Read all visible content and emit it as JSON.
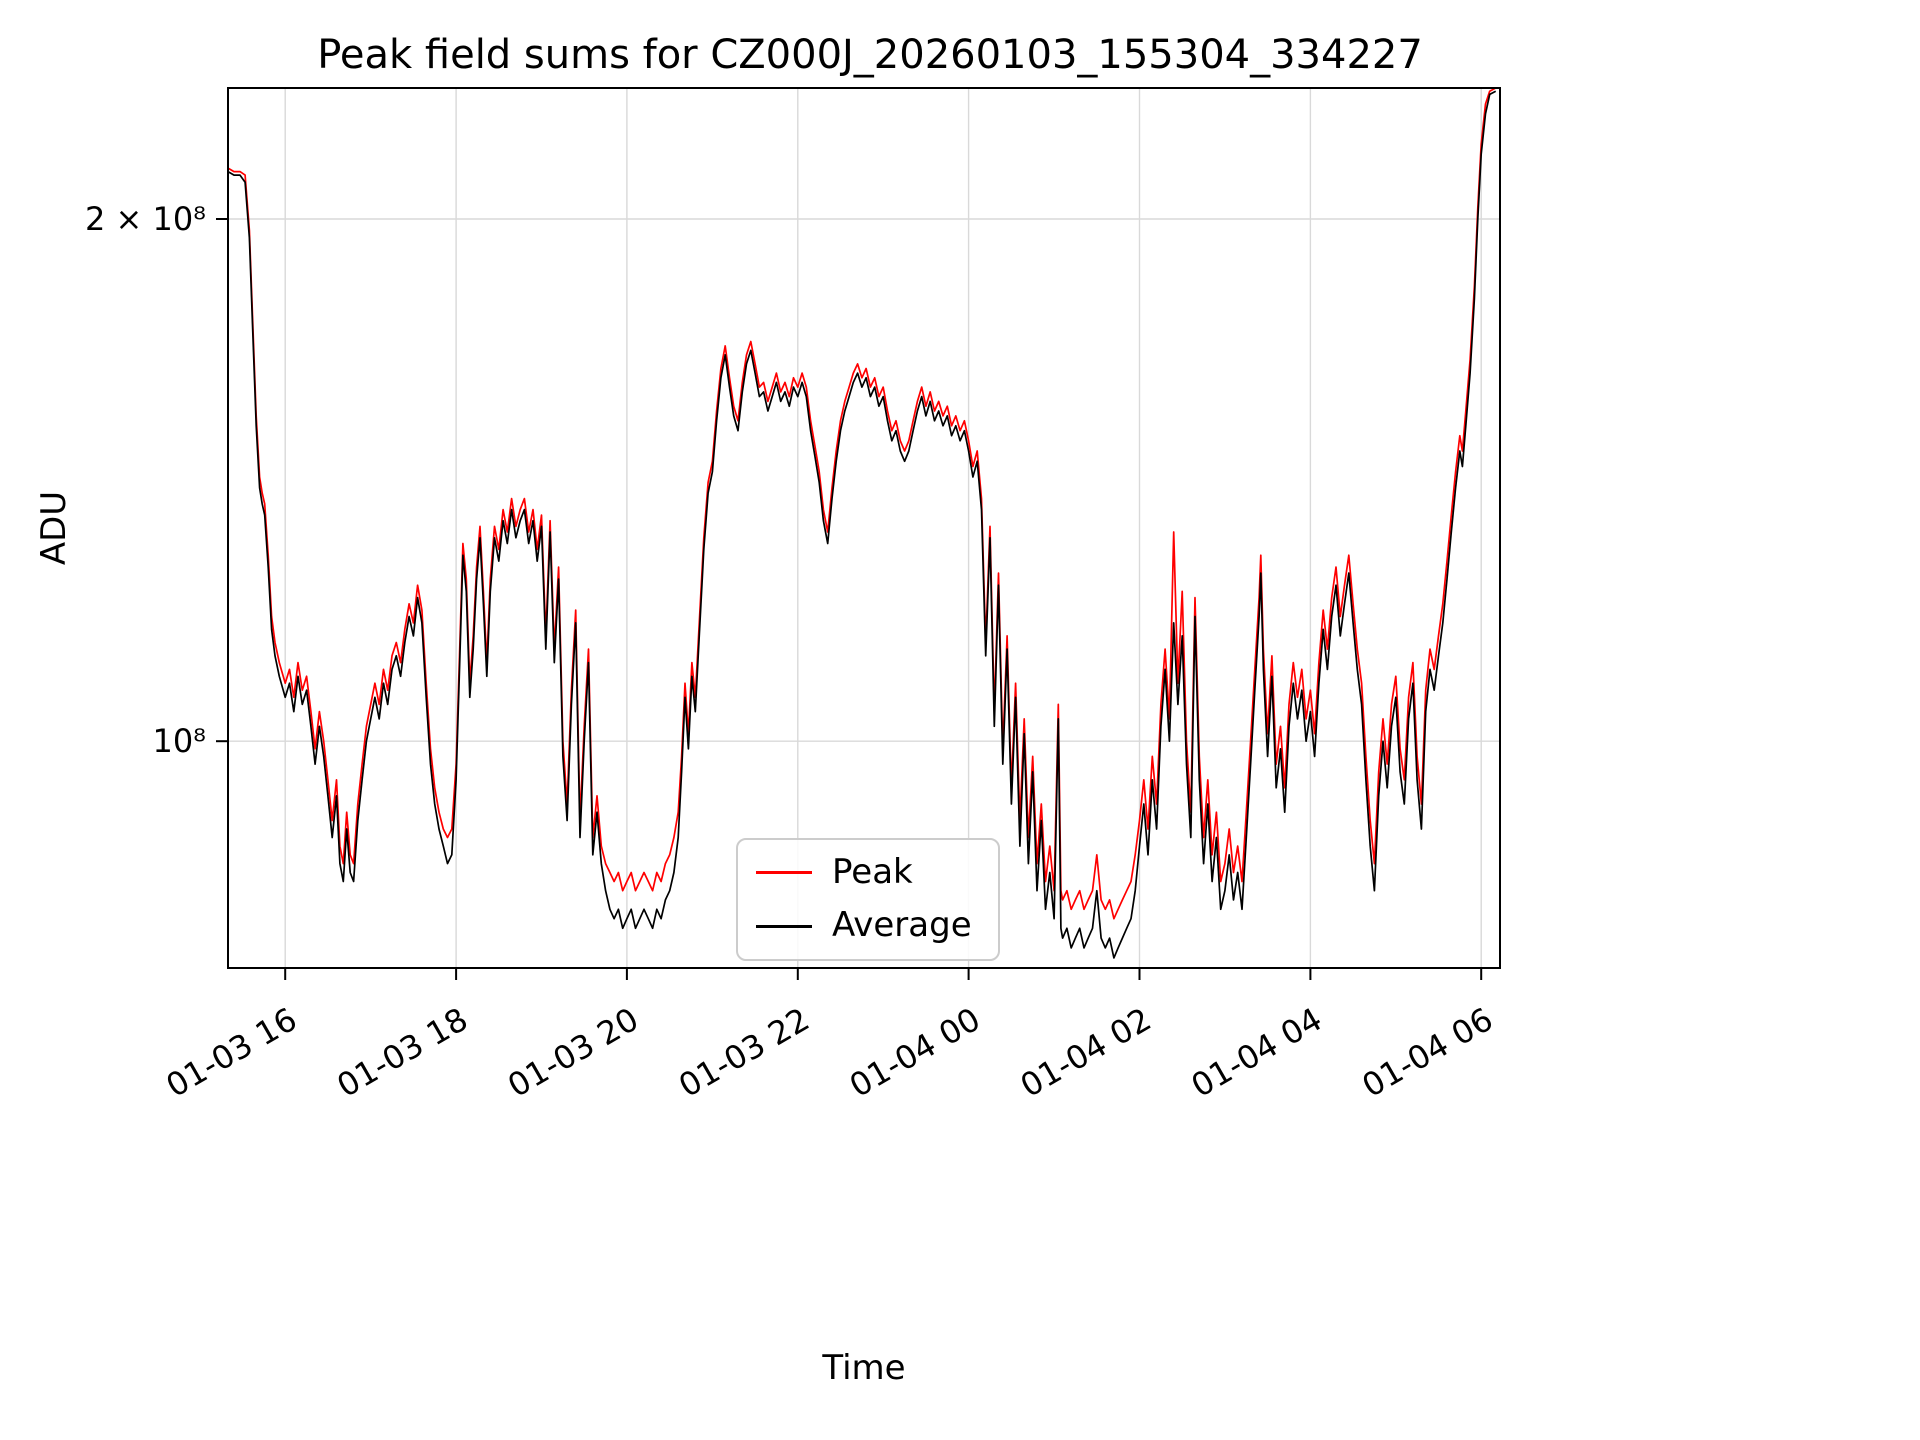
{
  "chart_data": {
    "type": "line",
    "title": "Peak field sums for CZ000J_20260103_155304_334227",
    "xlabel": "Time",
    "ylabel": "ADU",
    "y_scale": "log",
    "value_unit": "1e8 ADU",
    "xlim": [
      15.33,
      30.22
    ],
    "ylim_e8": [
      0.74,
      2.38
    ],
    "legend_position": "lower center",
    "grid": true,
    "colors": {
      "grid": "#d9d9d9",
      "peak": "#ff0000",
      "average": "#000000"
    },
    "x_ticks": [
      {
        "t": 16,
        "label": "01-03 16"
      },
      {
        "t": 18,
        "label": "01-03 18"
      },
      {
        "t": 20,
        "label": "01-03 20"
      },
      {
        "t": 22,
        "label": "01-03 22"
      },
      {
        "t": 24,
        "label": "01-04 00"
      },
      {
        "t": 26,
        "label": "01-04 02"
      },
      {
        "t": 28,
        "label": "01-04 04"
      },
      {
        "t": 30,
        "label": "01-04 06"
      }
    ],
    "y_ticks": [
      {
        "v": 1,
        "label": "10⁸"
      },
      {
        "v": 2,
        "label": "2 × 10⁸"
      }
    ],
    "series": [
      {
        "name": "Peak",
        "color": "#ff0000"
      },
      {
        "name": "Average",
        "color": "#000000"
      }
    ],
    "points_format": [
      "t_hours_from_0103_0000",
      "average_1e8",
      "peak_1e8"
    ],
    "points": [
      [
        15.33,
        2.13,
        2.14
      ],
      [
        15.4,
        2.12,
        2.13
      ],
      [
        15.47,
        2.12,
        2.13
      ],
      [
        15.53,
        2.1,
        2.12
      ],
      [
        15.58,
        1.95,
        1.97
      ],
      [
        15.62,
        1.72,
        1.74
      ],
      [
        15.66,
        1.52,
        1.54
      ],
      [
        15.7,
        1.4,
        1.42
      ],
      [
        15.73,
        1.37,
        1.39
      ],
      [
        15.76,
        1.35,
        1.37
      ],
      [
        15.8,
        1.26,
        1.28
      ],
      [
        15.84,
        1.16,
        1.18
      ],
      [
        15.88,
        1.12,
        1.14
      ],
      [
        15.93,
        1.09,
        1.11
      ],
      [
        16.0,
        1.06,
        1.08
      ],
      [
        16.05,
        1.08,
        1.1
      ],
      [
        16.1,
        1.04,
        1.06
      ],
      [
        16.15,
        1.09,
        1.11
      ],
      [
        16.2,
        1.05,
        1.07
      ],
      [
        16.25,
        1.07,
        1.09
      ],
      [
        16.3,
        1.02,
        1.04
      ],
      [
        16.35,
        0.97,
        0.99
      ],
      [
        16.4,
        1.02,
        1.04
      ],
      [
        16.45,
        0.98,
        1.0
      ],
      [
        16.5,
        0.93,
        0.95
      ],
      [
        16.55,
        0.88,
        0.9
      ],
      [
        16.6,
        0.93,
        0.95
      ],
      [
        16.64,
        0.85,
        0.87
      ],
      [
        16.68,
        0.83,
        0.85
      ],
      [
        16.72,
        0.89,
        0.91
      ],
      [
        16.76,
        0.84,
        0.86
      ],
      [
        16.8,
        0.83,
        0.85
      ],
      [
        16.85,
        0.9,
        0.92
      ],
      [
        16.9,
        0.95,
        0.97
      ],
      [
        16.95,
        1.0,
        1.02
      ],
      [
        17.0,
        1.03,
        1.05
      ],
      [
        17.05,
        1.06,
        1.08
      ],
      [
        17.1,
        1.03,
        1.05
      ],
      [
        17.15,
        1.08,
        1.1
      ],
      [
        17.2,
        1.05,
        1.07
      ],
      [
        17.25,
        1.1,
        1.12
      ],
      [
        17.3,
        1.12,
        1.14
      ],
      [
        17.35,
        1.09,
        1.11
      ],
      [
        17.4,
        1.14,
        1.16
      ],
      [
        17.45,
        1.18,
        1.2
      ],
      [
        17.5,
        1.15,
        1.17
      ],
      [
        17.55,
        1.21,
        1.23
      ],
      [
        17.6,
        1.17,
        1.19
      ],
      [
        17.65,
        1.06,
        1.08
      ],
      [
        17.7,
        0.97,
        0.99
      ],
      [
        17.75,
        0.92,
        0.94
      ],
      [
        17.8,
        0.89,
        0.91
      ],
      [
        17.85,
        0.87,
        0.89
      ],
      [
        17.9,
        0.85,
        0.88
      ],
      [
        17.95,
        0.86,
        0.89
      ],
      [
        18.0,
        0.95,
        0.97
      ],
      [
        18.04,
        1.1,
        1.12
      ],
      [
        18.08,
        1.28,
        1.3
      ],
      [
        18.12,
        1.22,
        1.24
      ],
      [
        18.16,
        1.06,
        1.08
      ],
      [
        18.2,
        1.13,
        1.15
      ],
      [
        18.24,
        1.24,
        1.26
      ],
      [
        18.28,
        1.31,
        1.33
      ],
      [
        18.32,
        1.2,
        1.22
      ],
      [
        18.36,
        1.09,
        1.11
      ],
      [
        18.4,
        1.22,
        1.24
      ],
      [
        18.45,
        1.31,
        1.33
      ],
      [
        18.5,
        1.27,
        1.29
      ],
      [
        18.55,
        1.34,
        1.36
      ],
      [
        18.6,
        1.3,
        1.32
      ],
      [
        18.65,
        1.36,
        1.38
      ],
      [
        18.7,
        1.31,
        1.33
      ],
      [
        18.75,
        1.34,
        1.36
      ],
      [
        18.8,
        1.36,
        1.38
      ],
      [
        18.85,
        1.3,
        1.32
      ],
      [
        18.9,
        1.34,
        1.36
      ],
      [
        18.95,
        1.27,
        1.29
      ],
      [
        19.0,
        1.33,
        1.35
      ],
      [
        19.05,
        1.13,
        1.15
      ],
      [
        19.1,
        1.32,
        1.34
      ],
      [
        19.15,
        1.11,
        1.13
      ],
      [
        19.2,
        1.24,
        1.26
      ],
      [
        19.25,
        0.98,
        1.0
      ],
      [
        19.3,
        0.9,
        0.92
      ],
      [
        19.35,
        1.05,
        1.07
      ],
      [
        19.4,
        1.17,
        1.19
      ],
      [
        19.45,
        0.88,
        0.9
      ],
      [
        19.5,
        1.0,
        1.02
      ],
      [
        19.55,
        1.11,
        1.13
      ],
      [
        19.6,
        0.86,
        0.88
      ],
      [
        19.65,
        0.91,
        0.93
      ],
      [
        19.7,
        0.85,
        0.87
      ],
      [
        19.75,
        0.82,
        0.85
      ],
      [
        19.8,
        0.8,
        0.84
      ],
      [
        19.85,
        0.79,
        0.83
      ],
      [
        19.9,
        0.8,
        0.84
      ],
      [
        19.95,
        0.78,
        0.82
      ],
      [
        20.0,
        0.79,
        0.83
      ],
      [
        20.05,
        0.8,
        0.84
      ],
      [
        20.1,
        0.78,
        0.82
      ],
      [
        20.15,
        0.79,
        0.83
      ],
      [
        20.2,
        0.8,
        0.84
      ],
      [
        20.25,
        0.79,
        0.83
      ],
      [
        20.3,
        0.78,
        0.82
      ],
      [
        20.35,
        0.8,
        0.84
      ],
      [
        20.4,
        0.79,
        0.83
      ],
      [
        20.45,
        0.81,
        0.85
      ],
      [
        20.5,
        0.82,
        0.86
      ],
      [
        20.55,
        0.84,
        0.88
      ],
      [
        20.6,
        0.88,
        0.91
      ],
      [
        20.64,
        0.96,
        0.98
      ],
      [
        20.68,
        1.06,
        1.08
      ],
      [
        20.72,
        0.99,
        1.01
      ],
      [
        20.76,
        1.09,
        1.11
      ],
      [
        20.8,
        1.04,
        1.06
      ],
      [
        20.85,
        1.16,
        1.18
      ],
      [
        20.9,
        1.29,
        1.31
      ],
      [
        20.95,
        1.39,
        1.41
      ],
      [
        21.0,
        1.43,
        1.45
      ],
      [
        21.05,
        1.53,
        1.55
      ],
      [
        21.1,
        1.62,
        1.64
      ],
      [
        21.15,
        1.67,
        1.69
      ],
      [
        21.2,
        1.6,
        1.62
      ],
      [
        21.25,
        1.54,
        1.56
      ],
      [
        21.3,
        1.51,
        1.53
      ],
      [
        21.35,
        1.59,
        1.61
      ],
      [
        21.4,
        1.65,
        1.67
      ],
      [
        21.45,
        1.68,
        1.7
      ],
      [
        21.5,
        1.63,
        1.65
      ],
      [
        21.55,
        1.58,
        1.6
      ],
      [
        21.6,
        1.59,
        1.61
      ],
      [
        21.65,
        1.55,
        1.57
      ],
      [
        21.7,
        1.58,
        1.6
      ],
      [
        21.75,
        1.61,
        1.63
      ],
      [
        21.8,
        1.57,
        1.59
      ],
      [
        21.85,
        1.59,
        1.61
      ],
      [
        21.9,
        1.56,
        1.58
      ],
      [
        21.95,
        1.6,
        1.62
      ],
      [
        22.0,
        1.58,
        1.6
      ],
      [
        22.05,
        1.61,
        1.63
      ],
      [
        22.1,
        1.58,
        1.6
      ],
      [
        22.15,
        1.51,
        1.53
      ],
      [
        22.2,
        1.46,
        1.48
      ],
      [
        22.25,
        1.41,
        1.43
      ],
      [
        22.3,
        1.34,
        1.36
      ],
      [
        22.35,
        1.3,
        1.32
      ],
      [
        22.4,
        1.38,
        1.4
      ],
      [
        22.45,
        1.45,
        1.47
      ],
      [
        22.5,
        1.51,
        1.53
      ],
      [
        22.55,
        1.55,
        1.57
      ],
      [
        22.6,
        1.58,
        1.6
      ],
      [
        22.65,
        1.61,
        1.63
      ],
      [
        22.7,
        1.63,
        1.65
      ],
      [
        22.75,
        1.6,
        1.62
      ],
      [
        22.8,
        1.62,
        1.64
      ],
      [
        22.85,
        1.58,
        1.6
      ],
      [
        22.9,
        1.6,
        1.62
      ],
      [
        22.95,
        1.56,
        1.58
      ],
      [
        23.0,
        1.58,
        1.6
      ],
      [
        23.05,
        1.53,
        1.55
      ],
      [
        23.1,
        1.49,
        1.51
      ],
      [
        23.15,
        1.51,
        1.53
      ],
      [
        23.2,
        1.47,
        1.49
      ],
      [
        23.25,
        1.45,
        1.47
      ],
      [
        23.3,
        1.47,
        1.49
      ],
      [
        23.35,
        1.51,
        1.53
      ],
      [
        23.4,
        1.55,
        1.57
      ],
      [
        23.45,
        1.58,
        1.6
      ],
      [
        23.5,
        1.54,
        1.56
      ],
      [
        23.55,
        1.57,
        1.59
      ],
      [
        23.6,
        1.53,
        1.55
      ],
      [
        23.65,
        1.55,
        1.57
      ],
      [
        23.7,
        1.52,
        1.54
      ],
      [
        23.75,
        1.54,
        1.56
      ],
      [
        23.8,
        1.5,
        1.52
      ],
      [
        23.85,
        1.52,
        1.54
      ],
      [
        23.9,
        1.49,
        1.51
      ],
      [
        23.95,
        1.51,
        1.53
      ],
      [
        24.0,
        1.47,
        1.49
      ],
      [
        24.05,
        1.42,
        1.44
      ],
      [
        24.1,
        1.45,
        1.47
      ],
      [
        24.15,
        1.36,
        1.38
      ],
      [
        24.2,
        1.12,
        1.14
      ],
      [
        24.25,
        1.31,
        1.33
      ],
      [
        24.3,
        1.02,
        1.04
      ],
      [
        24.35,
        1.23,
        1.25
      ],
      [
        24.4,
        0.97,
        0.99
      ],
      [
        24.45,
        1.13,
        1.15
      ],
      [
        24.5,
        0.92,
        0.94
      ],
      [
        24.55,
        1.06,
        1.08
      ],
      [
        24.6,
        0.87,
        0.9
      ],
      [
        24.65,
        1.01,
        1.03
      ],
      [
        24.7,
        0.85,
        0.88
      ],
      [
        24.75,
        0.96,
        0.98
      ],
      [
        24.8,
        0.82,
        0.85
      ],
      [
        24.85,
        0.9,
        0.92
      ],
      [
        24.9,
        0.8,
        0.83
      ],
      [
        24.95,
        0.84,
        0.87
      ],
      [
        25.0,
        0.79,
        0.82
      ],
      [
        25.05,
        1.03,
        1.05
      ],
      [
        25.08,
        0.78,
        0.82
      ],
      [
        25.1,
        0.77,
        0.81
      ],
      [
        25.15,
        0.78,
        0.82
      ],
      [
        25.2,
        0.76,
        0.8
      ],
      [
        25.25,
        0.77,
        0.81
      ],
      [
        25.3,
        0.78,
        0.82
      ],
      [
        25.35,
        0.76,
        0.8
      ],
      [
        25.4,
        0.77,
        0.81
      ],
      [
        25.45,
        0.78,
        0.82
      ],
      [
        25.5,
        0.82,
        0.86
      ],
      [
        25.55,
        0.77,
        0.81
      ],
      [
        25.6,
        0.76,
        0.8
      ],
      [
        25.65,
        0.77,
        0.81
      ],
      [
        25.7,
        0.75,
        0.79
      ],
      [
        25.75,
        0.76,
        0.8
      ],
      [
        25.8,
        0.77,
        0.81
      ],
      [
        25.85,
        0.78,
        0.82
      ],
      [
        25.9,
        0.79,
        0.83
      ],
      [
        25.95,
        0.82,
        0.86
      ],
      [
        26.0,
        0.87,
        0.9
      ],
      [
        26.05,
        0.92,
        0.95
      ],
      [
        26.1,
        0.86,
        0.89
      ],
      [
        26.15,
        0.95,
        0.98
      ],
      [
        26.2,
        0.89,
        0.92
      ],
      [
        26.25,
        1.02,
        1.05
      ],
      [
        26.3,
        1.1,
        1.13
      ],
      [
        26.35,
        1.0,
        1.03
      ],
      [
        26.4,
        1.17,
        1.32
      ],
      [
        26.45,
        1.05,
        1.08
      ],
      [
        26.5,
        1.15,
        1.22
      ],
      [
        26.55,
        0.97,
        1.0
      ],
      [
        26.6,
        0.88,
        0.91
      ],
      [
        26.65,
        1.18,
        1.21
      ],
      [
        26.7,
        0.95,
        0.98
      ],
      [
        26.75,
        0.85,
        0.88
      ],
      [
        26.8,
        0.92,
        0.95
      ],
      [
        26.85,
        0.83,
        0.86
      ],
      [
        26.9,
        0.88,
        0.91
      ],
      [
        26.95,
        0.8,
        0.83
      ],
      [
        27.0,
        0.82,
        0.85
      ],
      [
        27.05,
        0.86,
        0.89
      ],
      [
        27.1,
        0.81,
        0.84
      ],
      [
        27.15,
        0.84,
        0.87
      ],
      [
        27.2,
        0.8,
        0.83
      ],
      [
        27.25,
        0.88,
        0.91
      ],
      [
        27.3,
        0.97,
        1.0
      ],
      [
        27.35,
        1.07,
        1.1
      ],
      [
        27.4,
        1.18,
        1.21
      ],
      [
        27.42,
        1.25,
        1.28
      ],
      [
        27.45,
        1.1,
        1.13
      ],
      [
        27.5,
        0.98,
        1.01
      ],
      [
        27.55,
        1.09,
        1.12
      ],
      [
        27.6,
        0.94,
        0.97
      ],
      [
        27.65,
        0.99,
        1.02
      ],
      [
        27.7,
        0.91,
        0.94
      ],
      [
        27.75,
        1.02,
        1.05
      ],
      [
        27.8,
        1.08,
        1.11
      ],
      [
        27.85,
        1.03,
        1.06
      ],
      [
        27.9,
        1.07,
        1.1
      ],
      [
        27.95,
        1.0,
        1.03
      ],
      [
        28.0,
        1.04,
        1.07
      ],
      [
        28.05,
        0.98,
        1.01
      ],
      [
        28.1,
        1.08,
        1.11
      ],
      [
        28.15,
        1.16,
        1.19
      ],
      [
        28.2,
        1.1,
        1.13
      ],
      [
        28.25,
        1.18,
        1.21
      ],
      [
        28.3,
        1.23,
        1.26
      ],
      [
        28.35,
        1.15,
        1.18
      ],
      [
        28.4,
        1.2,
        1.23
      ],
      [
        28.45,
        1.25,
        1.28
      ],
      [
        28.5,
        1.17,
        1.2
      ],
      [
        28.55,
        1.1,
        1.13
      ],
      [
        28.6,
        1.05,
        1.08
      ],
      [
        28.65,
        0.95,
        0.98
      ],
      [
        28.7,
        0.87,
        0.9
      ],
      [
        28.75,
        0.82,
        0.85
      ],
      [
        28.8,
        0.93,
        0.96
      ],
      [
        28.85,
        1.0,
        1.03
      ],
      [
        28.9,
        0.94,
        0.97
      ],
      [
        28.95,
        1.02,
        1.05
      ],
      [
        29.0,
        1.06,
        1.09
      ],
      [
        29.05,
        0.96,
        0.99
      ],
      [
        29.1,
        0.92,
        0.95
      ],
      [
        29.15,
        1.03,
        1.06
      ],
      [
        29.2,
        1.08,
        1.11
      ],
      [
        29.25,
        0.95,
        0.98
      ],
      [
        29.3,
        0.89,
        0.92
      ],
      [
        29.35,
        1.04,
        1.07
      ],
      [
        29.4,
        1.1,
        1.13
      ],
      [
        29.45,
        1.07,
        1.1
      ],
      [
        29.5,
        1.12,
        1.15
      ],
      [
        29.55,
        1.17,
        1.2
      ],
      [
        29.6,
        1.24,
        1.27
      ],
      [
        29.65,
        1.32,
        1.35
      ],
      [
        29.7,
        1.4,
        1.43
      ],
      [
        29.75,
        1.47,
        1.5
      ],
      [
        29.78,
        1.44,
        1.47
      ],
      [
        29.82,
        1.52,
        1.55
      ],
      [
        29.87,
        1.63,
        1.66
      ],
      [
        29.92,
        1.8,
        1.83
      ],
      [
        29.96,
        2.0,
        2.03
      ],
      [
        30.0,
        2.18,
        2.21
      ],
      [
        30.05,
        2.3,
        2.33
      ],
      [
        30.1,
        2.36,
        2.37
      ],
      [
        30.17,
        2.37,
        2.38
      ]
    ]
  }
}
